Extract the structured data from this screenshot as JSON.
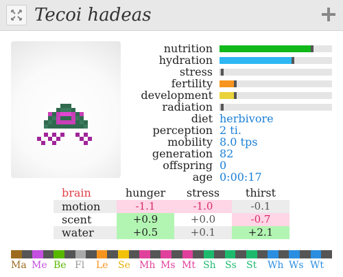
{
  "header": {
    "title": "Tecoi hadeas",
    "close_icon": "close-x-icon",
    "add_icon": "plus-icon"
  },
  "stats": [
    {
      "label": "nutrition",
      "value": 0.81,
      "color": "#10b81a"
    },
    {
      "label": "hydration",
      "value": 0.64,
      "color": "#2db7f2"
    },
    {
      "label": "stress",
      "value": 0.01,
      "color": "#cccccc"
    },
    {
      "label": "fertility",
      "value": 0.13,
      "color": "#f7941d"
    },
    {
      "label": "development",
      "value": 0.13,
      "color": "#e9d23a"
    },
    {
      "label": "radiation",
      "value": 0.01,
      "color": "#cccccc"
    }
  ],
  "info": [
    {
      "label": "diet",
      "value": "herbivore"
    },
    {
      "label": "perception",
      "value": "2 ti."
    },
    {
      "label": "mobility",
      "value": "8.0 tps"
    },
    {
      "label": "generation",
      "value": "82"
    },
    {
      "label": "offspring",
      "value": "0"
    },
    {
      "label": "age",
      "value": "0:00:17"
    }
  ],
  "brain": {
    "title": "brain",
    "columns": [
      "hunger",
      "stress",
      "thirst"
    ],
    "rows": [
      {
        "label": "motion",
        "cells": [
          {
            "v": "-1.1",
            "t": "neg"
          },
          {
            "v": "-1.0",
            "t": "neg"
          },
          {
            "v": "-0.1",
            "t": "neutral"
          }
        ]
      },
      {
        "label": "scent",
        "cells": [
          {
            "v": "+0.9",
            "t": "pos"
          },
          {
            "v": "+0.0",
            "t": "neutral"
          },
          {
            "v": "-0.7",
            "t": "neg"
          }
        ]
      },
      {
        "label": "water",
        "cells": [
          {
            "v": "+0.5",
            "t": "pos"
          },
          {
            "v": "+0.1",
            "t": "neutral"
          },
          {
            "v": "+2.1",
            "t": "pos"
          }
        ]
      }
    ],
    "colors": {
      "neg_bg": "#ffd6e6",
      "neg_fg": "#d62a6a",
      "pos_bg": "#b2f5b2",
      "pos_fg": "#222222",
      "neutral_bg": "#ffffff",
      "neutral_fg": "#555555",
      "title_fg": "#e0404a"
    }
  },
  "genome": {
    "segments": [
      "#9c6b1e",
      "#555555",
      "#c44fe0",
      "#555555",
      "#58b800",
      "#555555",
      "#aaaaaa",
      "#555555",
      "#f7941d",
      "#555555",
      "#f2c10a",
      "#555555",
      "#e0409c",
      "#555555",
      "#e0409c",
      "#555555",
      "#e0409c",
      "#555555",
      "#1dba6e",
      "#555555",
      "#1dba6e",
      "#555555",
      "#1dba6e",
      "#555555",
      "#2b8ee0",
      "#555555",
      "#2b8ee0",
      "#555555",
      "#2b8ee0",
      "#555555"
    ],
    "labels": [
      {
        "text": "Ma",
        "color": "#9c6b1e"
      },
      {
        "text": "Me",
        "color": "#c44fe0"
      },
      {
        "text": "Be",
        "color": "#58b800"
      },
      {
        "text": "Fl",
        "color": "#999999"
      },
      {
        "text": "Le",
        "color": "#f7941d"
      },
      {
        "text": "Se",
        "color": "#e3b10a"
      },
      {
        "text": "Mh",
        "color": "#e0409c"
      },
      {
        "text": "Ms",
        "color": "#e0409c"
      },
      {
        "text": "Mt",
        "color": "#e0409c"
      },
      {
        "text": "Sh",
        "color": "#1dba6e"
      },
      {
        "text": "Ss",
        "color": "#1dba6e"
      },
      {
        "text": "St",
        "color": "#1dba6e"
      },
      {
        "text": "Wh",
        "color": "#2b8ee0"
      },
      {
        "text": "Ws",
        "color": "#2b8ee0"
      },
      {
        "text": "Wt",
        "color": "#2b8ee0"
      }
    ]
  }
}
